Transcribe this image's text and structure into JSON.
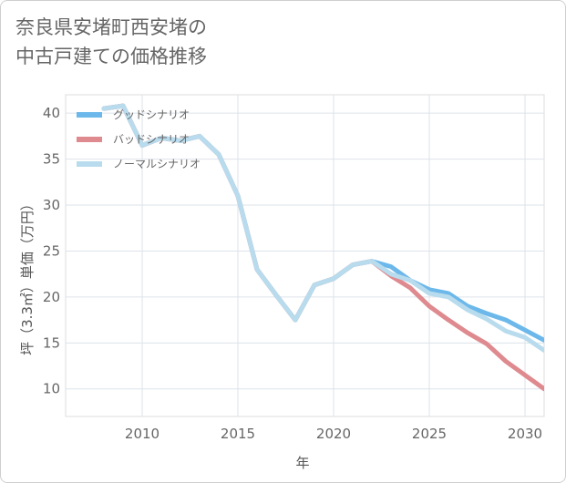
{
  "title": {
    "line1": "奈良県安堵町西安堵の",
    "line2": "中古戸建ての価格推移"
  },
  "chart_data": {
    "type": "line",
    "title": "奈良県安堵町西安堵の中古戸建ての価格推移",
    "xlabel": "年",
    "ylabel": "坪（3.3㎡）単価（万円）",
    "xlim": [
      2006,
      2031
    ],
    "ylim": [
      7,
      42
    ],
    "xticks": [
      2010,
      2015,
      2020,
      2025,
      2030
    ],
    "yticks": [
      10,
      15,
      20,
      25,
      30,
      35,
      40
    ],
    "grid": true,
    "legend_position": "top-left",
    "series": [
      {
        "name": "グッドシナリオ",
        "color": "#6cb8ea",
        "x": [
          2008,
          2009,
          2010,
          2011,
          2012,
          2013,
          2014,
          2015,
          2016,
          2017,
          2018,
          2019,
          2020,
          2021,
          2022,
          2023,
          2024,
          2025,
          2026,
          2027,
          2028,
          2029,
          2030,
          2031
        ],
        "y": [
          40.5,
          40.8,
          36.5,
          37.3,
          37.0,
          37.5,
          35.5,
          31.0,
          23.0,
          20.2,
          17.5,
          21.3,
          22.0,
          23.5,
          23.9,
          23.3,
          21.8,
          20.8,
          20.4,
          19.0,
          18.2,
          17.5,
          16.4,
          15.3
        ]
      },
      {
        "name": "バッドシナリオ",
        "color": "#de8a8f",
        "x": [
          2008,
          2009,
          2010,
          2011,
          2012,
          2013,
          2014,
          2015,
          2016,
          2017,
          2018,
          2019,
          2020,
          2021,
          2022,
          2023,
          2024,
          2025,
          2026,
          2027,
          2028,
          2029,
          2030,
          2031
        ],
        "y": [
          40.5,
          40.8,
          36.5,
          37.3,
          37.0,
          37.5,
          35.5,
          31.0,
          23.0,
          20.2,
          17.5,
          21.3,
          22.0,
          23.5,
          23.9,
          22.3,
          21.0,
          19.0,
          17.5,
          16.1,
          14.9,
          13.0,
          11.5,
          10.0
        ]
      },
      {
        "name": "ノーマルシナリオ",
        "color": "#b8dced",
        "x": [
          2008,
          2009,
          2010,
          2011,
          2012,
          2013,
          2014,
          2015,
          2016,
          2017,
          2018,
          2019,
          2020,
          2021,
          2022,
          2023,
          2024,
          2025,
          2026,
          2027,
          2028,
          2029,
          2030,
          2031
        ],
        "y": [
          40.5,
          40.8,
          36.5,
          37.3,
          37.0,
          37.5,
          35.5,
          31.0,
          23.0,
          20.2,
          17.5,
          21.3,
          22.0,
          23.5,
          23.9,
          22.5,
          21.8,
          20.4,
          20.0,
          18.6,
          17.6,
          16.3,
          15.6,
          14.2
        ]
      }
    ]
  }
}
